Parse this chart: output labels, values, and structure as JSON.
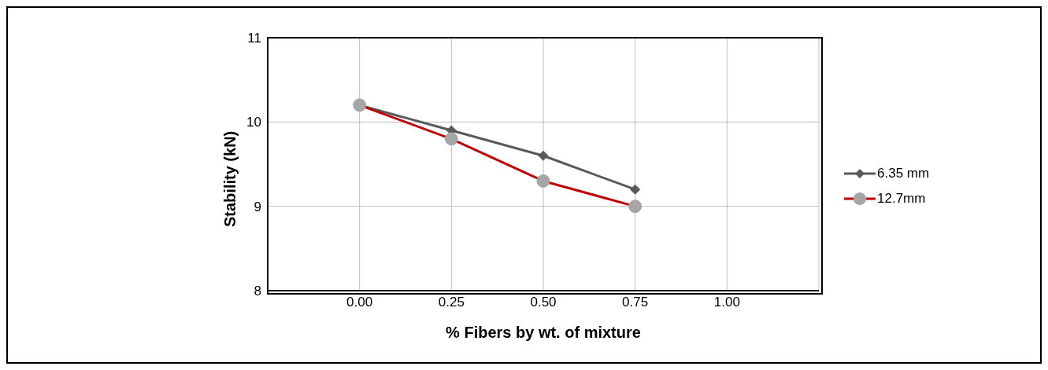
{
  "chart_data": {
    "type": "line",
    "xlabel": "% Fibers by wt. of mixture",
    "ylabel": "Stability (kN)",
    "x": [
      0,
      0.25,
      0.5,
      0.75
    ],
    "series": [
      {
        "name": "6.35 mm",
        "color": "#595959",
        "marker": "diamond",
        "values": [
          10.2,
          9.9,
          9.6,
          9.2
        ]
      },
      {
        "name": "12.7mm",
        "color": "#c00000",
        "colors": [
          "#a6a6a6",
          "#a6a6a6",
          "#a6a6a6",
          "#a6a6a6"
        ],
        "marker": "circle",
        "values": [
          10.2,
          9.8,
          9.3,
          9.0
        ]
      }
    ],
    "xlim": [
      -0.25,
      1.25
    ],
    "xticks": [
      {
        "value": 0,
        "label": "0.00"
      },
      {
        "value": 0.25,
        "label": "0.25"
      },
      {
        "value": 0.5,
        "label": "0.50"
      },
      {
        "value": 0.75,
        "label": "0.75"
      },
      {
        "value": 1,
        "label": "1.00"
      }
    ],
    "ylim": [
      8,
      11
    ],
    "yticks": [
      8,
      9,
      10,
      11
    ],
    "grid": true,
    "legend": "right"
  }
}
